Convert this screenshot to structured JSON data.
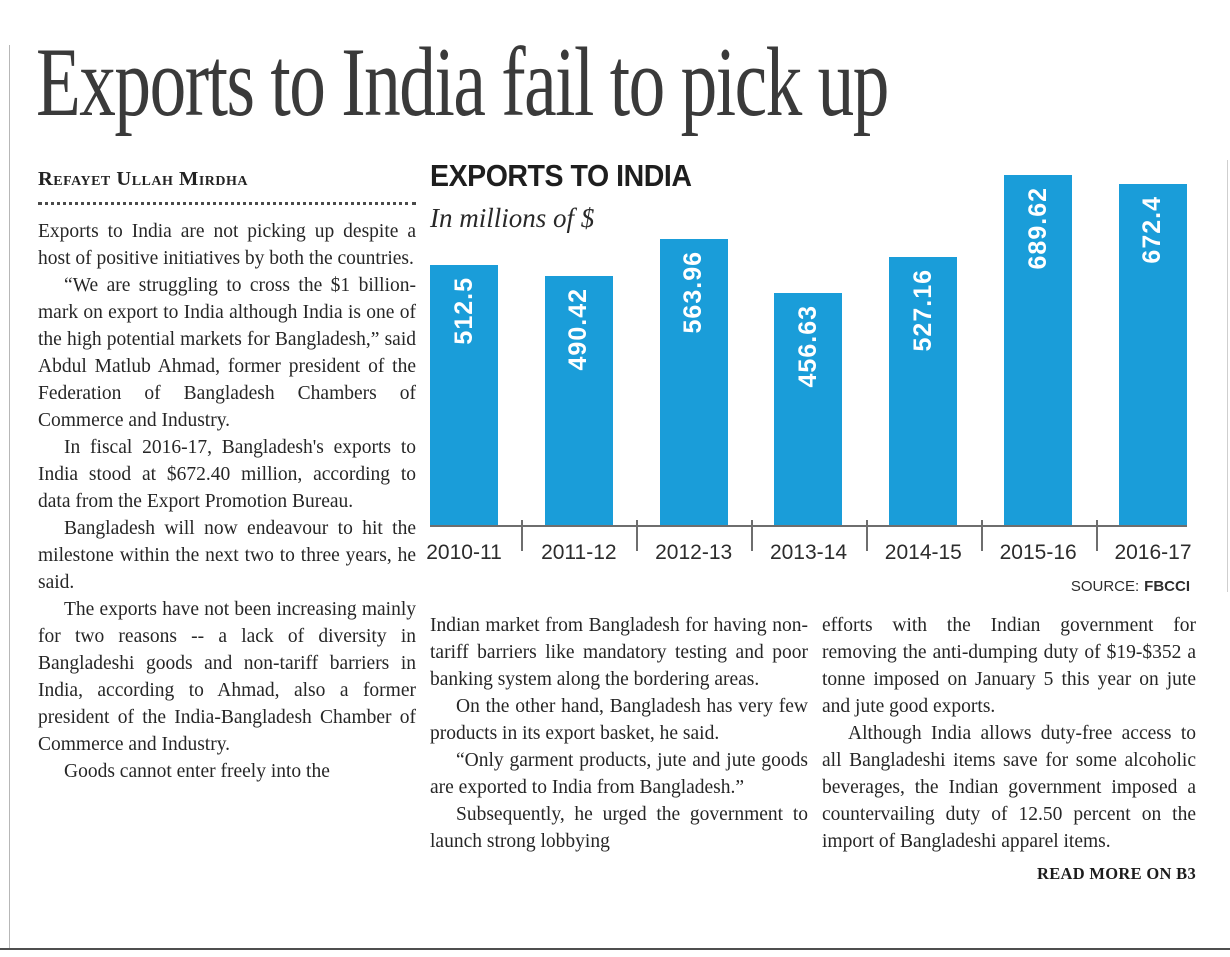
{
  "article": {
    "headline": "Exports to India fail to pick up",
    "byline": "Refayet Ullah Mirdha",
    "columns": [
      [
        "Exports to India are not picking up despite a host of positive initiatives by both the countries.",
        "“We are struggling to cross the $1 billion-mark on export to India although India is one of the high potential markets for Bangladesh,” said Abdul Matlub Ahmad, former president of the Federation of Bangladesh Chambers of Commerce and Industry.",
        "In fiscal 2016-17, Bangladesh's exports to India stood at $672.40 million, according to data from the Export Promotion Bureau.",
        "Bangladesh will now endeavour to hit the milestone within the next two to three years, he said.",
        "The exports have not been increasing mainly for two reasons -- a lack of diversity in Bangladeshi goods and non-tariff barriers in India, according to Ahmad, also a former president of the India-Bangladesh Chamber of Commerce and Industry.",
        "Goods cannot enter freely into the"
      ],
      [
        "Indian market from Bangladesh for having non-tariff barriers like mandatory testing and poor banking system along the bordering areas.",
        "On the other hand, Bangladesh has very few products in its export basket, he said.",
        "“Only garment products, jute and jute goods are exported to India from Bangladesh.”",
        "Subsequently, he urged the government to launch strong lobbying"
      ],
      [
        "efforts with the Indian government for removing the anti-dumping duty of $19-$352 a tonne imposed on January 5 this year on jute and jute good exports.",
        "Although India allows duty-free access to all Bangladeshi items save for some alcoholic beverages, the Indian government imposed a countervailing duty of 12.50 percent on the import of Bangladeshi apparel items."
      ]
    ],
    "read_more": "READ MORE ON B3"
  },
  "chart": {
    "title": "EXPORTS TO INDIA",
    "subtitle": "In millions of $",
    "source_label": "SOURCE:",
    "source_value": "FBCCI"
  },
  "chart_data": {
    "type": "bar",
    "title": "EXPORTS TO INDIA",
    "subtitle": "In millions of $",
    "categories": [
      "2010-11",
      "2011-12",
      "2012-13",
      "2013-14",
      "2014-15",
      "2015-16",
      "2016-17"
    ],
    "values": [
      512.5,
      490.42,
      563.96,
      456.63,
      527.16,
      689.62,
      672.4
    ],
    "value_labels": [
      "512.5",
      "490.42",
      "563.96",
      "456.63",
      "527.16",
      "689.62",
      "672.4"
    ],
    "xlabel": "",
    "ylabel": "In millions of $",
    "ylim": [
      0,
      700
    ],
    "grid": false,
    "legend": false,
    "bar_color": "#1a9dd9",
    "source": "SOURCE: FBCCI"
  },
  "colors": {
    "bar": "#1a9dd9",
    "headline": "#3a3a3a",
    "body_text": "#262626"
  }
}
